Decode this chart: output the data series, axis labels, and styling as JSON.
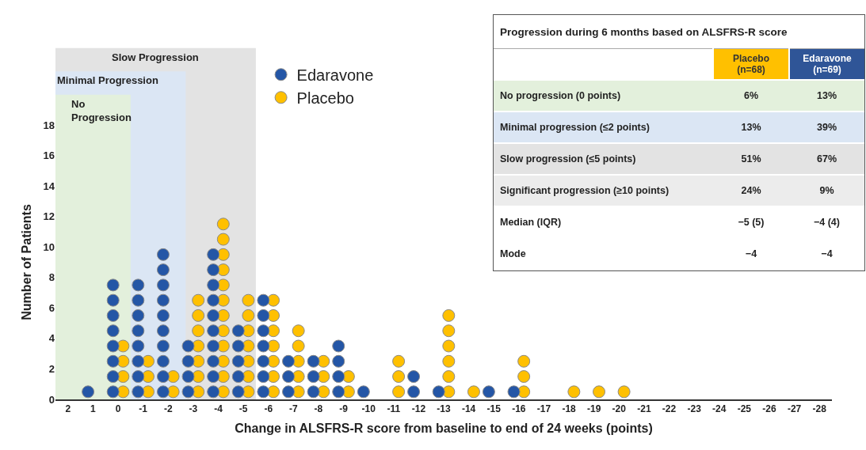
{
  "chart_data": [
    {
      "type": "scatter",
      "xlabel": "Change in ALSFRS-R score from baseline to end of 24 weeks (points)",
      "ylabel": "Number of Patients",
      "xlim": [
        2.5,
        -28.5
      ],
      "xticks": [
        2,
        1,
        0,
        -1,
        -2,
        -3,
        -4,
        -5,
        -6,
        -7,
        -8,
        -9,
        -10,
        -11,
        -12,
        -13,
        -14,
        -15,
        -16,
        -17,
        -18,
        -19,
        -20,
        -21,
        -22,
        -23,
        -24,
        -25,
        -26,
        -27,
        -28
      ],
      "ylim": [
        0,
        18
      ],
      "yticks": [
        0,
        2,
        4,
        6,
        8,
        10,
        12,
        14,
        16,
        18
      ],
      "legend": "top",
      "marker": "circle",
      "bands": [
        {
          "axis": "x",
          "from": 2.5,
          "to": -5.5,
          "label": "Slow Progression",
          "color": "#e3e3e3"
        },
        {
          "axis": "x",
          "from": 2.5,
          "to": -2.7,
          "label": "Minimal Progression",
          "color": "#dbe6f4"
        },
        {
          "axis": "x",
          "from": 2.5,
          "to": -0.5,
          "label": "No Progression",
          "color": "#e3f0dc"
        }
      ],
      "series": [
        {
          "name": "Edaravone",
          "color": "#2456a6",
          "x": [
            1.2,
            0.2,
            0.2,
            0.2,
            0.2,
            0.2,
            0.2,
            0.2,
            0.2,
            -0.8,
            -0.8,
            -0.8,
            -0.8,
            -0.8,
            -0.8,
            -0.8,
            -0.8,
            -1.8,
            -1.8,
            -1.8,
            -1.8,
            -1.8,
            -1.8,
            -1.8,
            -1.8,
            -1.8,
            -1.8,
            -2.8,
            -2.8,
            -2.8,
            -2.8,
            -3.8,
            -3.8,
            -3.8,
            -3.8,
            -3.8,
            -3.8,
            -3.8,
            -3.8,
            -3.8,
            -3.8,
            -4.8,
            -4.8,
            -4.8,
            -4.8,
            -4.8,
            -5.8,
            -5.8,
            -5.8,
            -5.8,
            -5.8,
            -5.8,
            -5.8,
            -6.8,
            -6.8,
            -6.8,
            -7.8,
            -7.8,
            -7.8,
            -8.8,
            -8.8,
            -8.8,
            -8.8,
            -9.8,
            -11.8,
            -11.8,
            -12.8,
            -14.8,
            -15.8
          ],
          "values": [
            0.5,
            0.5,
            1.5,
            2.5,
            3.5,
            4.5,
            5.5,
            6.5,
            7.5,
            0.5,
            1.5,
            2.5,
            3.5,
            4.5,
            5.5,
            6.5,
            7.5,
            0.5,
            1.5,
            2.5,
            3.5,
            4.5,
            5.5,
            6.5,
            7.5,
            8.5,
            9.5,
            0.5,
            1.5,
            2.5,
            3.5,
            0.5,
            1.5,
            2.5,
            3.5,
            4.5,
            5.5,
            6.5,
            7.5,
            8.5,
            9.5,
            0.5,
            1.5,
            2.5,
            3.5,
            4.5,
            0.5,
            1.5,
            2.5,
            3.5,
            4.5,
            5.5,
            6.5,
            0.5,
            1.5,
            2.5,
            0.5,
            1.5,
            2.5,
            0.5,
            1.5,
            2.5,
            3.5,
            0.5,
            0.5,
            1.5,
            0.5,
            0.5,
            0.5
          ]
        },
        {
          "name": "Placebo",
          "color": "#ffc000",
          "x": [
            -0.2,
            -0.2,
            -0.2,
            -0.2,
            -1.2,
            -1.2,
            -1.2,
            -2.2,
            -2.2,
            -3.2,
            -3.2,
            -3.2,
            -3.2,
            -3.2,
            -3.2,
            -3.2,
            -4.2,
            -4.2,
            -4.2,
            -4.2,
            -4.2,
            -4.2,
            -4.2,
            -4.2,
            -4.2,
            -4.2,
            -4.2,
            -4.2,
            -5.2,
            -5.2,
            -5.2,
            -5.2,
            -5.2,
            -5.2,
            -5.2,
            -6.2,
            -6.2,
            -6.2,
            -6.2,
            -6.2,
            -6.2,
            -6.2,
            -7.2,
            -7.2,
            -7.2,
            -7.2,
            -7.2,
            -8.2,
            -8.2,
            -8.2,
            -9.2,
            -9.2,
            -11.2,
            -11.2,
            -11.2,
            -13.2,
            -13.2,
            -13.2,
            -13.2,
            -13.2,
            -13.2,
            -14.2,
            -16.2,
            -16.2,
            -16.2,
            -18.2,
            -19.2,
            -20.2
          ],
          "values": [
            0.5,
            1.5,
            2.5,
            3.5,
            0.5,
            1.5,
            2.5,
            0.5,
            1.5,
            0.5,
            1.5,
            2.5,
            3.5,
            4.5,
            5.5,
            6.5,
            0.5,
            1.5,
            2.5,
            3.5,
            4.5,
            5.5,
            6.5,
            7.5,
            8.5,
            9.5,
            10.5,
            11.5,
            0.5,
            1.5,
            2.5,
            3.5,
            4.5,
            5.5,
            6.5,
            0.5,
            1.5,
            2.5,
            3.5,
            4.5,
            5.5,
            6.5,
            0.5,
            1.5,
            2.5,
            3.5,
            4.5,
            0.5,
            1.5,
            2.5,
            0.5,
            1.5,
            0.5,
            1.5,
            2.5,
            0.5,
            1.5,
            2.5,
            3.5,
            4.5,
            5.5,
            0.5,
            0.5,
            1.5,
            2.5,
            0.5,
            0.5,
            0.5
          ]
        }
      ]
    },
    {
      "type": "other",
      "title": "Progression during 6 months based on ALSFRS-R score",
      "annotations": [
        "Placebo (n=68)",
        "Edaravone (n=69)",
        "No progression (0 points)",
        "6%",
        "13%",
        "Minimal progression (≤2 points)",
        "13%",
        "39%",
        "Slow progression (≤5 points)",
        "51%",
        "67%",
        "Significant progression (≥10 points)",
        "24%",
        "9%",
        "Median (IQR)",
        "−5 (5)",
        "−4 (4)",
        "Mode",
        "−4",
        "−4"
      ]
    }
  ]
}
